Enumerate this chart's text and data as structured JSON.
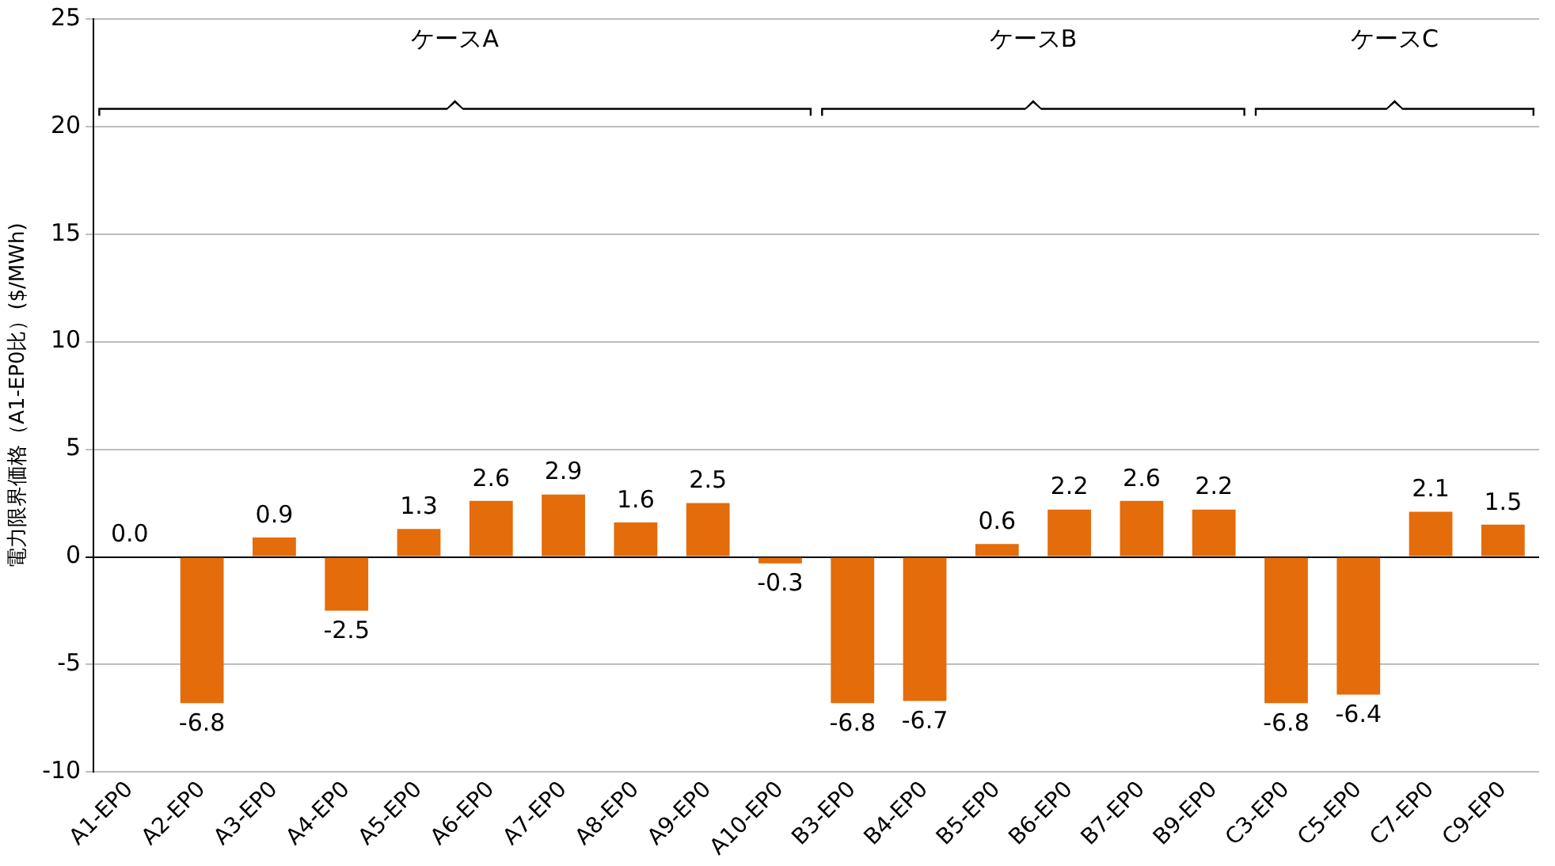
{
  "chart_data": {
    "type": "bar",
    "ylabel": "電力限界価格（A1-EP0比）($/MWh)",
    "categories": [
      "A1-EP0",
      "A2-EP0",
      "A3-EP0",
      "A4-EP0",
      "A5-EP0",
      "A6-EP0",
      "A7-EP0",
      "A8-EP0",
      "A9-EP0",
      "A10-EP0",
      "B3-EP0",
      "B4-EP0",
      "B5-EP0",
      "B6-EP0",
      "B7-EP0",
      "B9-EP0",
      "C3-EP0",
      "C5-EP0",
      "C7-EP0",
      "C9-EP0"
    ],
    "values": [
      0.0,
      -6.8,
      0.9,
      -2.5,
      1.3,
      2.6,
      2.9,
      1.6,
      2.5,
      -0.3,
      -6.8,
      -6.7,
      0.6,
      2.2,
      2.6,
      2.2,
      -6.8,
      -6.4,
      2.1,
      1.5
    ],
    "value_labels": [
      "0.0",
      "-6.8",
      "0.9",
      "-2.5",
      "1.3",
      "2.6",
      "2.9",
      "1.6",
      "2.5",
      "-0.3",
      "-6.8",
      "-6.7",
      "0.6",
      "2.2",
      "2.6",
      "2.2",
      "-6.8",
      "-6.4",
      "2.1",
      "1.5"
    ],
    "color": "#e46c0a",
    "ylim": [
      -10,
      25
    ],
    "yticks": [
      -10,
      -5,
      0,
      5,
      10,
      15,
      20,
      25
    ],
    "grid": "y",
    "legend": false,
    "annotations": [
      "ケースA",
      "ケースB",
      "ケースC"
    ]
  }
}
